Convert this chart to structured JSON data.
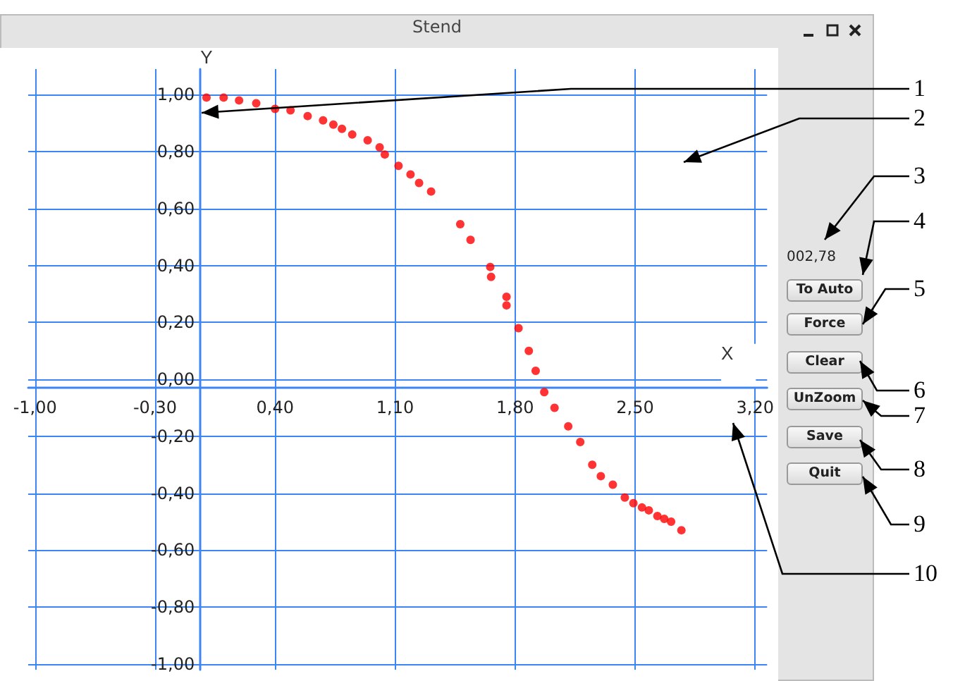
{
  "chart_data": {
    "type": "scatter",
    "title": "Stend",
    "xlabel": "X",
    "ylabel": "Y",
    "x": [
      0.0,
      0.1,
      0.19,
      0.29,
      0.4,
      0.49,
      0.59,
      0.68,
      0.74,
      0.79,
      0.85,
      0.94,
      1.01,
      1.04,
      1.12,
      1.19,
      1.24,
      1.31,
      1.48,
      1.54,
      1.655,
      1.66,
      1.75,
      1.75,
      1.82,
      1.88,
      1.92,
      1.97,
      2.03,
      2.11,
      2.18,
      2.25,
      2.3,
      2.37,
      2.44,
      2.49,
      2.54,
      2.58,
      2.63,
      2.67,
      2.71,
      2.77
    ],
    "series": [
      {
        "color": "#ff0000",
        "values": [
          0.99,
          0.99,
          0.98,
          0.97,
          0.95,
          0.945,
          0.925,
          0.91,
          0.895,
          0.88,
          0.86,
          0.84,
          0.815,
          0.79,
          0.75,
          0.72,
          0.69,
          0.66,
          0.545,
          0.49,
          0.395,
          0.36,
          0.29,
          0.26,
          0.18,
          0.1,
          0.03,
          -0.045,
          -0.1,
          -0.165,
          -0.22,
          -0.3,
          -0.34,
          -0.37,
          -0.415,
          -0.435,
          -0.45,
          -0.46,
          -0.48,
          -0.49,
          -0.5,
          -0.53
        ]
      }
    ],
    "marker": "circle",
    "grid": true,
    "xlim": [
      -1.04,
      3.27
    ],
    "ylim": [
      -1.02,
      1.09
    ],
    "xticks": [
      {
        "value": -1.0,
        "label": "-1,00"
      },
      {
        "value": -0.3,
        "label": "-0,30"
      },
      {
        "value": 0.4,
        "label": "0,40"
      },
      {
        "value": 1.1,
        "label": "1,10"
      },
      {
        "value": 1.8,
        "label": "1,80"
      },
      {
        "value": 2.5,
        "label": "2,50"
      },
      {
        "value": 3.2,
        "label": "3,20"
      }
    ],
    "yticks": [
      {
        "value": -1.0,
        "label": "-1,00"
      },
      {
        "value": -0.8,
        "label": "-0,80"
      },
      {
        "value": -0.6,
        "label": "-0,60"
      },
      {
        "value": -0.4,
        "label": "-0,40"
      },
      {
        "value": -0.2,
        "label": "-0,20"
      },
      {
        "value": 0,
        "label": "0,00"
      },
      {
        "value": 0.2,
        "label": "0,20"
      },
      {
        "value": 0.4,
        "label": "0,40"
      },
      {
        "value": 0.6,
        "label": "0,60"
      },
      {
        "value": 0.8,
        "label": "0,80"
      },
      {
        "value": 1.0,
        "label": "1,00"
      }
    ],
    "annotations": [
      "002,78",
      "To Auto",
      "Force",
      "Clear",
      "UnZoom",
      "Save",
      "Quit",
      "1",
      "2",
      "3",
      "4",
      "5",
      "6",
      "7",
      "8",
      "9",
      "10"
    ]
  }
}
